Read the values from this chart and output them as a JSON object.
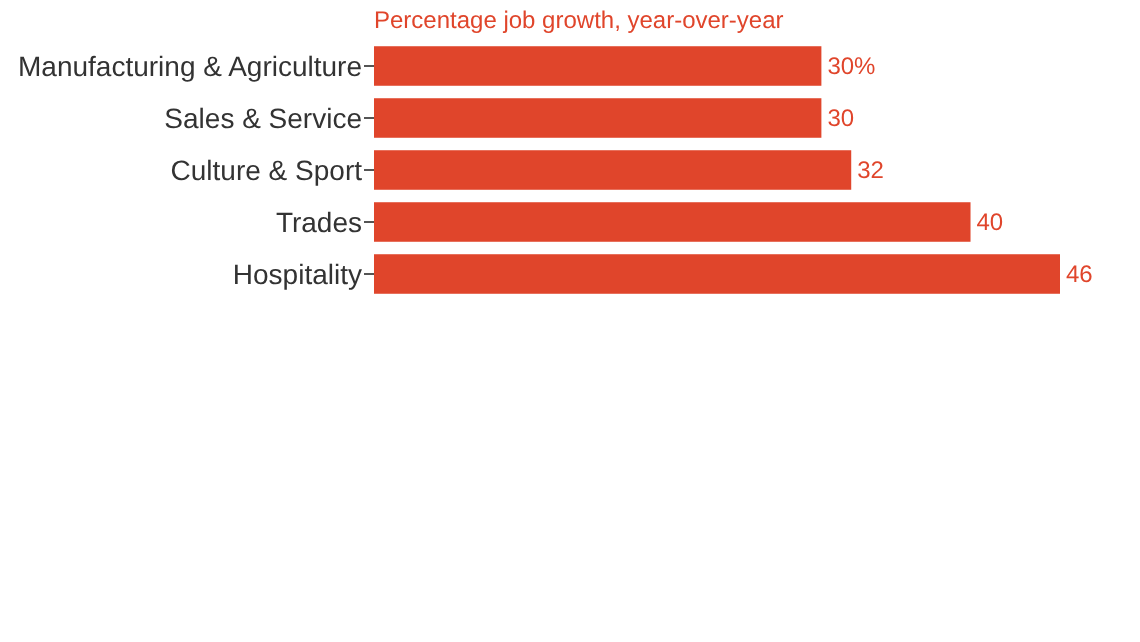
{
  "chart_data": {
    "type": "bar",
    "orientation": "horizontal",
    "title": "Percentage job growth, year-over-year",
    "categories": [
      "Manufacturing & Agriculture",
      "Sales & Service",
      "Culture & Sport",
      "Trades",
      "Hospitality"
    ],
    "values": [
      30,
      30,
      32,
      40,
      46
    ],
    "value_labels": [
      "30%",
      "30",
      "32",
      "40",
      "46"
    ],
    "color": "#e0452b",
    "grid": false
  }
}
